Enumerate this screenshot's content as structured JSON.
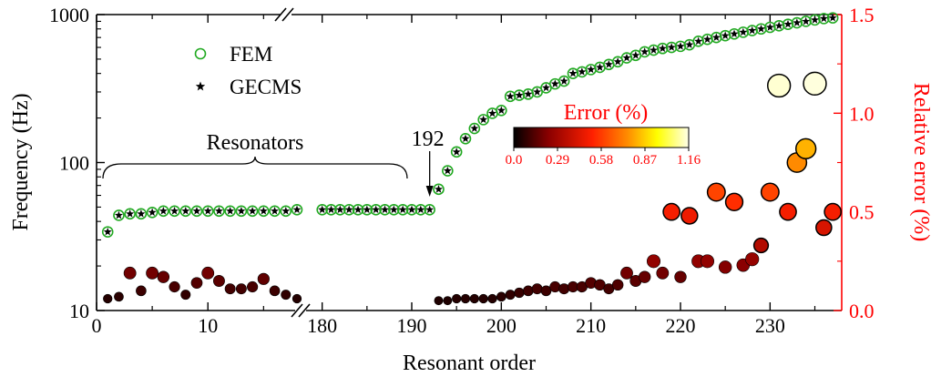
{
  "chart_data": {
    "type": "scatter",
    "xlabel": "Resonant order",
    "ylabel": "Frequency (Hz)",
    "ylabel_right": "Relative error (%)",
    "x_segments": [
      {
        "range": [
          0,
          18
        ],
        "ticks": [
          0,
          10
        ]
      },
      {
        "range": [
          178,
          238
        ],
        "ticks": [
          180,
          190,
          200,
          210,
          220,
          230
        ]
      }
    ],
    "x_break_between": [
      18,
      178
    ],
    "y_left_scale": "log",
    "y_left_range": [
      10,
      1000
    ],
    "y_left_ticks": [
      "10",
      "100",
      "1000"
    ],
    "y_left_tick_values": [
      10,
      100,
      1000
    ],
    "y_right_range": [
      0,
      1.5
    ],
    "y_right_ticks": [
      "0.0",
      "0.5",
      "1.0",
      "1.5"
    ],
    "y_right_tick_values": [
      0,
      0.5,
      1.0,
      1.5
    ],
    "legend": {
      "placement": "top-left",
      "entries": [
        "FEM",
        "GECMS"
      ]
    },
    "colors": {
      "fem": "#22aa22",
      "gecms": "#000000",
      "right_axis": "#ff0000"
    },
    "annotations": {
      "resonators": "Resonators",
      "mode_192": "192",
      "mode_192_x": 192
    },
    "colorbar": {
      "title": "Error (%)",
      "range": [
        0,
        1.16
      ],
      "tick_labels": [
        "0.0",
        "0.29",
        "0.58",
        "0.87",
        "1.16"
      ],
      "colors": [
        "#000000",
        "#8b0000",
        "#ff2000",
        "#ff8c00",
        "#ffff00",
        "#ffffe8"
      ]
    },
    "series": [
      {
        "name": "FEM",
        "marker": "open-circle",
        "axis": "left",
        "x": [
          1,
          2,
          3,
          4,
          5,
          6,
          7,
          8,
          9,
          10,
          11,
          12,
          13,
          14,
          15,
          16,
          17,
          18,
          180,
          181,
          182,
          183,
          184,
          185,
          186,
          187,
          188,
          189,
          190,
          191,
          192,
          193,
          194,
          195,
          196,
          197,
          198,
          199,
          200,
          201,
          202,
          203,
          204,
          205,
          206,
          207,
          208,
          209,
          210,
          211,
          212,
          213,
          214,
          215,
          216,
          217,
          218,
          219,
          220,
          221,
          222,
          223,
          224,
          225,
          226,
          227,
          228,
          229,
          230,
          231,
          232,
          233,
          234,
          235,
          236,
          237
        ],
        "y": [
          34,
          44,
          45,
          45,
          46,
          47,
          47,
          47,
          47,
          47,
          47,
          47,
          47,
          47,
          47,
          47,
          47,
          48,
          48,
          48,
          48,
          48,
          48,
          48,
          48,
          48,
          48,
          48,
          48,
          48,
          48,
          66,
          88,
          118,
          145,
          170,
          195,
          215,
          225,
          280,
          285,
          290,
          300,
          320,
          340,
          355,
          400,
          410,
          425,
          440,
          460,
          480,
          510,
          530,
          560,
          575,
          590,
          600,
          610,
          625,
          660,
          680,
          700,
          720,
          740,
          760,
          780,
          800,
          820,
          840,
          860,
          880,
          900,
          920,
          940,
          950
        ]
      },
      {
        "name": "GECMS",
        "marker": "star",
        "axis": "left",
        "x": [
          1,
          2,
          3,
          4,
          5,
          6,
          7,
          8,
          9,
          10,
          11,
          12,
          13,
          14,
          15,
          16,
          17,
          18,
          180,
          181,
          182,
          183,
          184,
          185,
          186,
          187,
          188,
          189,
          190,
          191,
          192,
          193,
          194,
          195,
          196,
          197,
          198,
          199,
          200,
          201,
          202,
          203,
          204,
          205,
          206,
          207,
          208,
          209,
          210,
          211,
          212,
          213,
          214,
          215,
          216,
          217,
          218,
          219,
          220,
          221,
          222,
          223,
          224,
          225,
          226,
          227,
          228,
          229,
          230,
          231,
          232,
          233,
          234,
          235,
          236,
          237
        ],
        "y": [
          34,
          44,
          45,
          45,
          46,
          47,
          47,
          47,
          47,
          47,
          47,
          47,
          47,
          47,
          47,
          47,
          47,
          48,
          48,
          48,
          48,
          48,
          48,
          48,
          48,
          48,
          48,
          48,
          48,
          48,
          48,
          66,
          88,
          118,
          145,
          170,
          195,
          215,
          225,
          280,
          285,
          290,
          300,
          320,
          340,
          355,
          400,
          410,
          425,
          440,
          460,
          480,
          510,
          530,
          560,
          575,
          590,
          600,
          610,
          625,
          660,
          680,
          700,
          720,
          740,
          760,
          780,
          800,
          820,
          840,
          860,
          880,
          900,
          920,
          940,
          950
        ]
      },
      {
        "name": "Relative error",
        "marker": "filled-circle-colormapped",
        "axis": "right",
        "x": [
          1,
          2,
          3,
          4,
          5,
          6,
          7,
          8,
          9,
          10,
          11,
          12,
          13,
          14,
          15,
          16,
          17,
          18,
          193,
          194,
          195,
          196,
          197,
          198,
          199,
          200,
          201,
          202,
          203,
          204,
          205,
          206,
          207,
          208,
          209,
          210,
          211,
          212,
          213,
          214,
          215,
          216,
          217,
          218,
          219,
          220,
          221,
          222,
          223,
          224,
          225,
          226,
          227,
          228,
          229,
          230,
          231,
          232,
          233,
          234,
          235,
          236,
          237
        ],
        "y": [
          0.06,
          0.07,
          0.19,
          0.1,
          0.19,
          0.17,
          0.12,
          0.08,
          0.14,
          0.19,
          0.15,
          0.11,
          0.11,
          0.12,
          0.16,
          0.1,
          0.08,
          0.06,
          0.05,
          0.05,
          0.06,
          0.06,
          0.06,
          0.06,
          0.06,
          0.07,
          0.08,
          0.09,
          0.1,
          0.11,
          0.1,
          0.12,
          0.11,
          0.12,
          0.12,
          0.14,
          0.13,
          0.11,
          0.13,
          0.19,
          0.15,
          0.17,
          0.25,
          0.19,
          0.5,
          0.17,
          0.48,
          0.25,
          0.25,
          0.6,
          0.22,
          0.55,
          0.23,
          0.26,
          0.33,
          0.6,
          1.14,
          0.5,
          0.75,
          0.82,
          1.15,
          0.42,
          0.5
        ]
      }
    ]
  }
}
